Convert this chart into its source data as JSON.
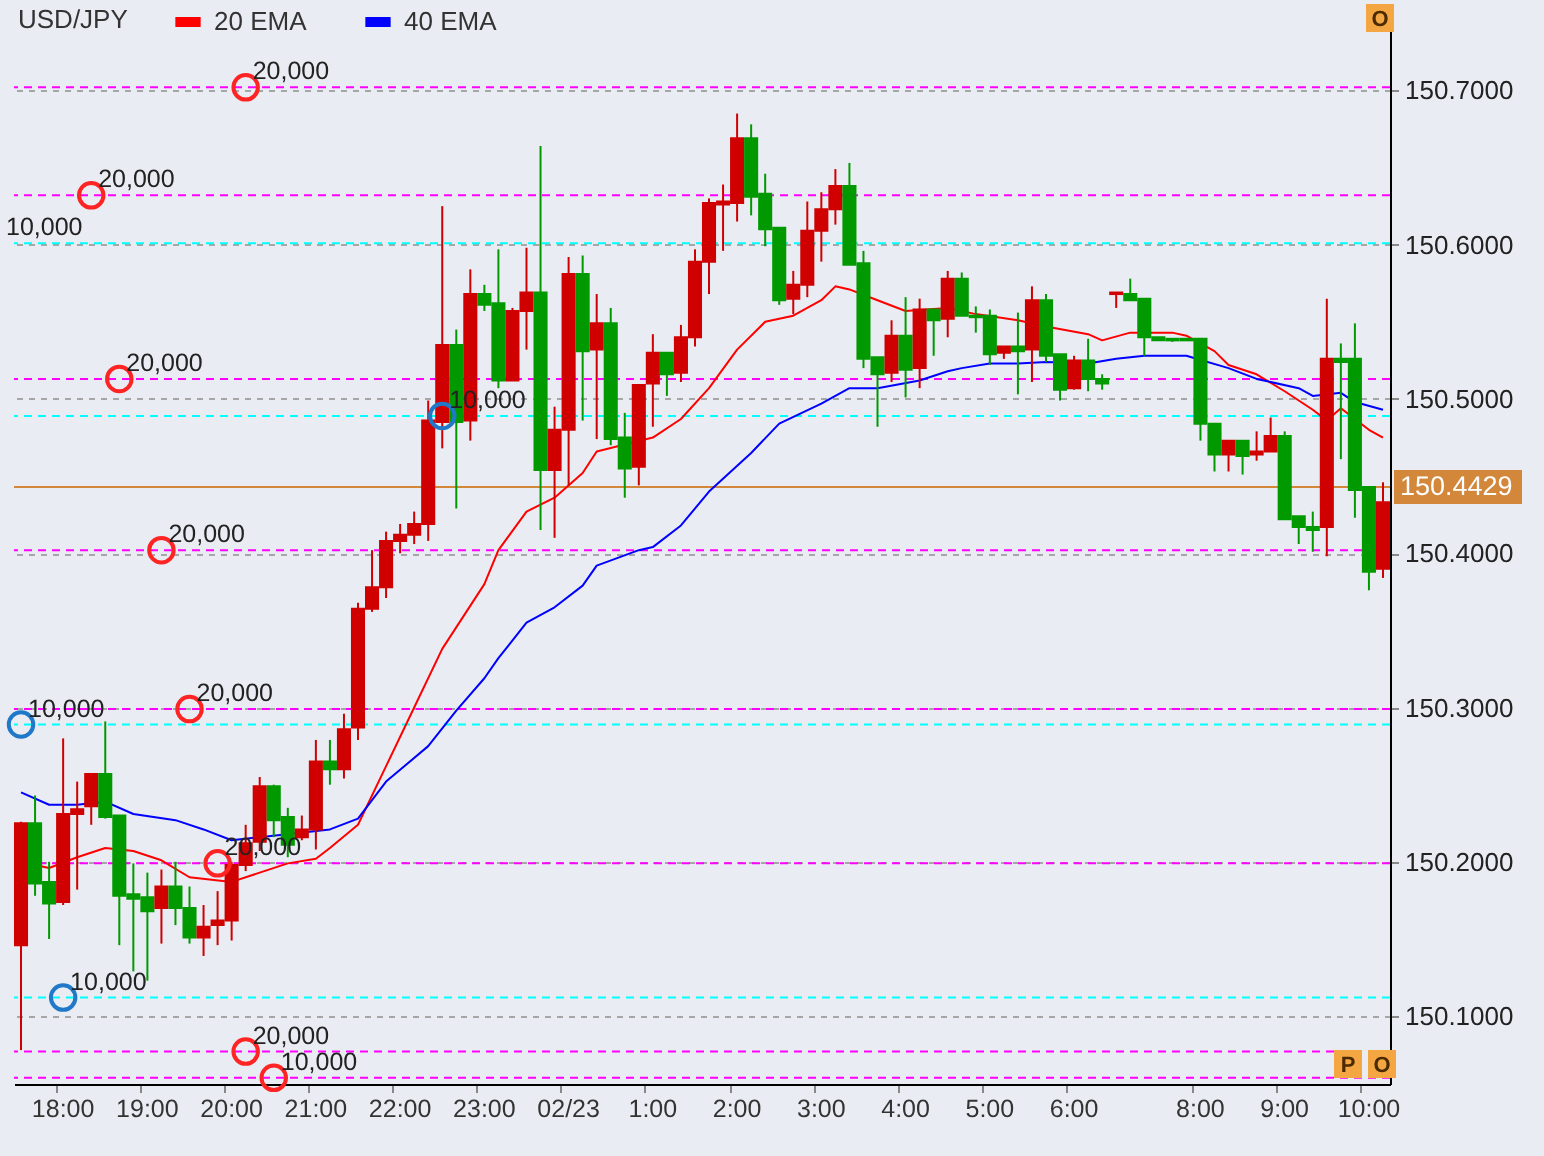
{
  "chart_data": {
    "type": "candlestick",
    "title": "USD/JPY",
    "legend": "top left",
    "grid": "y",
    "categories": [
      null,
      null,
      null,
      "18:00",
      null,
      null,
      null,
      null,
      null,
      "19:00",
      null,
      null,
      null,
      null,
      null,
      "20:00",
      null,
      null,
      null,
      null,
      null,
      "21:00",
      null,
      null,
      null,
      null,
      null,
      "22:00",
      null,
      null,
      null,
      null,
      null,
      "23:00",
      null,
      null,
      null,
      null,
      null,
      "02/23",
      null,
      null,
      null,
      null,
      null,
      "1:00",
      null,
      null,
      null,
      null,
      null,
      "2:00",
      null,
      null,
      null,
      null,
      null,
      "3:00",
      null,
      null,
      null,
      null,
      null,
      "4:00",
      null,
      null,
      null,
      null,
      null,
      "5:00",
      null,
      null,
      null,
      null,
      null,
      "6:00",
      null,
      null,
      null,
      null,
      null,
      null,
      null,
      null,
      "8:00",
      null,
      null,
      null,
      null,
      null,
      "9:00",
      null,
      null,
      null,
      null,
      null,
      "10:00",
      null
    ],
    "ylim": [
      150.056,
      150.756
    ],
    "yticks": [
      {
        "value": 150.1,
        "label": "150.1000"
      },
      {
        "value": 150.2,
        "label": "150.2000"
      },
      {
        "value": 150.3,
        "label": "150.3000"
      },
      {
        "value": 150.4,
        "label": "150.4000"
      },
      {
        "value": 150.5,
        "label": "150.5000"
      },
      {
        "value": 150.6,
        "label": "150.6000"
      },
      {
        "value": 150.7,
        "label": "150.7000"
      }
    ],
    "ohlc": [
      [
        150.146,
        150.226,
        150.078,
        150.225
      ],
      [
        150.225,
        150.243,
        150.178,
        150.186
      ],
      [
        150.187,
        150.2,
        150.15,
        150.173
      ],
      [
        150.174,
        150.28,
        150.172,
        150.231
      ],
      [
        150.231,
        150.252,
        150.182,
        150.234
      ],
      [
        150.236,
        150.257,
        150.224,
        150.257
      ],
      [
        150.257,
        150.291,
        150.228,
        150.229
      ],
      [
        150.23,
        150.23,
        150.146,
        150.178
      ],
      [
        150.179,
        150.199,
        150.129,
        150.176
      ],
      [
        150.177,
        150.193,
        150.123,
        150.168
      ],
      [
        150.17,
        150.195,
        150.147,
        150.184
      ],
      [
        150.184,
        150.2,
        150.159,
        150.17
      ],
      [
        150.17,
        150.184,
        150.147,
        150.151
      ],
      [
        150.151,
        150.172,
        150.139,
        150.158
      ],
      [
        150.159,
        150.181,
        150.146,
        150.162
      ],
      [
        150.162,
        150.2,
        150.149,
        150.198
      ],
      [
        150.198,
        150.224,
        150.194,
        150.212
      ],
      [
        150.213,
        150.255,
        150.207,
        150.249
      ],
      [
        150.249,
        150.25,
        150.216,
        150.227
      ],
      [
        150.229,
        150.235,
        150.203,
        150.211
      ],
      [
        150.216,
        150.23,
        150.214,
        150.221
      ],
      [
        150.221,
        150.279,
        150.208,
        150.265
      ],
      [
        150.265,
        150.279,
        150.25,
        150.26
      ],
      [
        150.26,
        150.296,
        150.254,
        150.286
      ],
      [
        150.287,
        150.368,
        150.279,
        150.364
      ],
      [
        150.364,
        150.402,
        150.362,
        150.378
      ],
      [
        150.378,
        150.414,
        150.371,
        150.408
      ],
      [
        150.408,
        150.419,
        150.4,
        150.412
      ],
      [
        150.412,
        150.427,
        150.406,
        150.419
      ],
      [
        150.419,
        150.499,
        150.408,
        150.486
      ],
      [
        150.485,
        150.625,
        150.468,
        150.535
      ],
      [
        150.535,
        150.545,
        150.429,
        150.485
      ],
      [
        150.486,
        150.584,
        150.473,
        150.568
      ],
      [
        150.568,
        150.574,
        150.557,
        150.561
      ],
      [
        150.562,
        150.597,
        150.507,
        150.512
      ],
      [
        150.512,
        150.559,
        150.512,
        150.557
      ],
      [
        150.557,
        150.598,
        150.532,
        150.569
      ],
      [
        150.569,
        150.664,
        150.415,
        150.454
      ],
      [
        150.454,
        150.495,
        150.41,
        150.48
      ],
      [
        150.48,
        150.592,
        150.444,
        150.581
      ],
      [
        150.581,
        150.593,
        150.486,
        150.531
      ],
      [
        150.532,
        150.568,
        150.474,
        150.549
      ],
      [
        150.549,
        150.559,
        150.47,
        150.474
      ],
      [
        150.475,
        150.491,
        150.436,
        150.455
      ],
      [
        150.456,
        150.509,
        150.444,
        150.509
      ],
      [
        150.51,
        150.542,
        150.482,
        150.53
      ],
      [
        150.53,
        150.53,
        150.502,
        150.516
      ],
      [
        150.517,
        150.548,
        150.511,
        150.54
      ],
      [
        150.54,
        150.597,
        150.534,
        150.589
      ],
      [
        150.589,
        150.63,
        150.568,
        150.627
      ],
      [
        150.626,
        150.639,
        150.596,
        150.628
      ],
      [
        150.627,
        150.685,
        150.615,
        150.669
      ],
      [
        150.669,
        150.678,
        150.619,
        150.631
      ],
      [
        150.633,
        150.646,
        150.599,
        150.61
      ],
      [
        150.611,
        150.611,
        150.561,
        150.564
      ],
      [
        150.565,
        150.583,
        150.555,
        150.574
      ],
      [
        150.574,
        150.628,
        150.566,
        150.609
      ],
      [
        150.609,
        150.634,
        150.589,
        150.623
      ],
      [
        150.623,
        150.649,
        150.613,
        150.638
      ],
      [
        150.638,
        150.653,
        150.587,
        150.587
      ],
      [
        150.588,
        150.596,
        150.52,
        150.526
      ],
      [
        150.527,
        150.527,
        150.482,
        150.516
      ],
      [
        150.517,
        150.551,
        150.511,
        150.541
      ],
      [
        150.541,
        150.566,
        150.501,
        150.519
      ],
      [
        150.52,
        150.565,
        150.507,
        150.558
      ],
      [
        150.558,
        150.558,
        150.528,
        150.551
      ],
      [
        150.552,
        150.583,
        150.54,
        150.578
      ],
      [
        150.578,
        150.582,
        150.554,
        150.554
      ],
      [
        150.554,
        150.56,
        150.543,
        150.553
      ],
      [
        150.554,
        150.558,
        150.522,
        150.529
      ],
      [
        150.53,
        150.534,
        150.526,
        150.534
      ],
      [
        150.534,
        150.556,
        150.503,
        150.531
      ],
      [
        150.532,
        150.573,
        150.511,
        150.564
      ],
      [
        150.564,
        150.568,
        150.524,
        150.528
      ],
      [
        150.529,
        150.529,
        150.499,
        150.506
      ],
      [
        150.507,
        150.528,
        150.506,
        150.525
      ],
      [
        150.525,
        150.539,
        150.505,
        150.513
      ],
      [
        150.513,
        150.516,
        150.506,
        150.51
      ],
      [
        150.568,
        150.569,
        150.559,
        150.569
      ],
      [
        150.568,
        150.578,
        150.564,
        150.564
      ],
      [
        150.565,
        150.565,
        150.528,
        150.54
      ],
      [
        150.54,
        150.54,
        150.538,
        150.538
      ],
      [
        150.539,
        150.539,
        150.537,
        150.538
      ],
      [
        150.539,
        150.539,
        150.538,
        150.538
      ],
      [
        150.539,
        150.539,
        150.473,
        150.484
      ],
      [
        150.484,
        150.484,
        150.453,
        150.464
      ],
      [
        150.464,
        150.473,
        150.453,
        150.473
      ],
      [
        150.473,
        150.473,
        150.451,
        150.463
      ],
      [
        150.464,
        150.479,
        150.46,
        150.466
      ],
      [
        150.466,
        150.488,
        150.466,
        150.476
      ],
      [
        150.476,
        150.479,
        150.422,
        150.422
      ],
      [
        150.424,
        150.424,
        150.406,
        150.417
      ],
      [
        150.417,
        150.427,
        150.401,
        150.415
      ],
      [
        150.417,
        150.565,
        150.398,
        150.526
      ],
      [
        150.526,
        150.536,
        150.461,
        150.524
      ],
      [
        150.526,
        150.549,
        150.423,
        150.441
      ],
      [
        150.443,
        150.443,
        150.376,
        150.388
      ],
      [
        150.39,
        150.446,
        150.384,
        150.433
      ]
    ],
    "colors": [
      "#d00000",
      "#009a00",
      "#009a00",
      "#d00000",
      "#d00000",
      "#d00000",
      "#009a00",
      "#009a00",
      "#009a00",
      "#009a00",
      "#d00000",
      "#009a00",
      "#009a00",
      "#d00000",
      "#d00000",
      "#d00000",
      "#d00000",
      "#d00000",
      "#009a00",
      "#009a00",
      "#d00000",
      "#d00000",
      "#009a00",
      "#d00000",
      "#d00000",
      "#d00000",
      "#d00000",
      "#d00000",
      "#d00000",
      "#d00000",
      "#d00000",
      "#009a00",
      "#d00000",
      "#009a00",
      "#009a00",
      "#d00000",
      "#d00000",
      "#009a00",
      "#d00000",
      "#d00000",
      "#009a00",
      "#d00000",
      "#009a00",
      "#009a00",
      "#d00000",
      "#d00000",
      "#009a00",
      "#d00000",
      "#d00000",
      "#d00000",
      "#d00000",
      "#d00000",
      "#009a00",
      "#009a00",
      "#009a00",
      "#d00000",
      "#d00000",
      "#d00000",
      "#d00000",
      "#009a00",
      "#009a00",
      "#009a00",
      "#d00000",
      "#009a00",
      "#d00000",
      "#009a00",
      "#d00000",
      "#009a00",
      "#009a00",
      "#009a00",
      "#d00000",
      "#009a00",
      "#d00000",
      "#009a00",
      "#009a00",
      "#d00000",
      "#009a00",
      "#009a00",
      "#d00000",
      "#009a00",
      "#009a00",
      "#009a00",
      "#009a00",
      "#009a00",
      "#009a00",
      "#009a00",
      "#d00000",
      "#009a00",
      "#d00000",
      "#d00000",
      "#009a00",
      "#009a00",
      "#009a00",
      "#d00000",
      "#009a00",
      "#009a00",
      "#009a00",
      "#d00000"
    ],
    "series": [
      {
        "name": "20 EMA",
        "type": "line",
        "color": "#ff0000",
        "values": [
          null,
          150.198,
          150.196,
          null,
          150.203,
          null,
          150.209,
          null,
          150.207,
          null,
          150.201,
          null,
          150.19,
          null,
          null,
          150.187,
          null,
          150.193,
          null,
          150.199,
          null,
          150.202,
          150.209,
          null,
          150.224,
          null,
          150.262,
          null,
          150.3,
          null,
          150.338,
          null,
          null,
          150.38,
          150.402,
          null,
          150.427,
          null,
          150.436,
          null,
          150.452,
          150.466,
          null,
          null,
          null,
          150.475,
          null,
          150.487,
          null,
          150.507,
          null,
          150.532,
          null,
          150.55,
          null,
          150.554,
          null,
          150.564,
          150.573,
          150.571,
          null,
          150.564,
          null,
          150.557,
          null,
          null,
          150.559,
          null,
          150.555,
          null,
          null,
          150.551,
          null,
          150.547,
          null,
          null,
          150.542,
          150.538,
          null,
          150.543,
          null,
          null,
          150.543,
          150.541,
          null,
          150.531,
          150.522,
          null,
          150.516,
          null,
          150.505,
          null,
          150.493,
          150.486,
          150.494,
          null,
          150.48,
          150.475
        ]
      },
      {
        "name": "40 EMA",
        "type": "line",
        "color": "#0000ff",
        "values": [
          150.245,
          null,
          150.237,
          null,
          150.237,
          null,
          150.239,
          null,
          150.231,
          null,
          null,
          150.227,
          null,
          150.221,
          null,
          150.214,
          null,
          150.216,
          null,
          null,
          null,
          null,
          150.221,
          null,
          150.228,
          null,
          150.252,
          null,
          null,
          150.275,
          null,
          150.298,
          null,
          150.319,
          150.332,
          null,
          150.355,
          null,
          150.365,
          null,
          150.379,
          150.392,
          null,
          null,
          150.402,
          150.404,
          null,
          150.418,
          null,
          150.44,
          null,
          null,
          150.465,
          null,
          150.484,
          null,
          null,
          150.497,
          null,
          150.507,
          null,
          150.507,
          null,
          null,
          150.512,
          null,
          150.518,
          150.52,
          null,
          150.523,
          null,
          150.523,
          null,
          150.524,
          null,
          null,
          150.523,
          null,
          150.526,
          null,
          150.528,
          null,
          null,
          150.528,
          null,
          null,
          150.52,
          null,
          150.513,
          null,
          null,
          150.507,
          150.502,
          null,
          150.504,
          150.498,
          null,
          150.493
        ]
      }
    ],
    "ref_lines": [
      {
        "axis": "y",
        "value": 150.702,
        "color": "#ff00ff",
        "line_style": "dashed"
      },
      {
        "axis": "y",
        "value": 150.632,
        "color": "#ff00ff",
        "line_style": "dashed"
      },
      {
        "axis": "y",
        "value": 150.601,
        "color": "#00ffff",
        "line_style": "dashed"
      },
      {
        "axis": "y",
        "value": 150.513,
        "color": "#ff00ff",
        "line_style": "dashed"
      },
      {
        "axis": "y",
        "value": 150.489,
        "color": "#00ffff",
        "line_style": "dashed"
      },
      {
        "axis": "y",
        "value": 150.402,
        "color": "#ff00ff",
        "line_style": "dashed"
      },
      {
        "axis": "y",
        "value": 150.299,
        "color": "#ff00ff",
        "line_style": "dashed"
      },
      {
        "axis": "y",
        "value": 150.289,
        "color": "#00ffff",
        "line_style": "dashed"
      },
      {
        "axis": "y",
        "value": 150.199,
        "color": "#ff00ff",
        "line_style": "dashed"
      },
      {
        "axis": "y",
        "value": 150.112,
        "color": "#00ffff",
        "line_style": "dashed"
      },
      {
        "axis": "y",
        "value": 150.077,
        "color": "#ff00ff",
        "line_style": "dashed"
      },
      {
        "axis": "y",
        "value": 150.06,
        "color": "#ff00ff",
        "line_style": "dashed"
      },
      {
        "axis": "y",
        "value": 150.4429,
        "label": "150.4429",
        "color": "#d2873a"
      }
    ],
    "annotations": [
      {
        "text": "20,000",
        "y": 150.702
      },
      {
        "text": "20,000",
        "y": 150.632
      },
      {
        "text": "10,000",
        "y": 150.601
      },
      {
        "text": "20,000",
        "y": 150.513
      },
      {
        "text": "10,000",
        "y": 150.489
      },
      {
        "text": "20,000",
        "y": 150.402
      },
      {
        "text": "20,000",
        "y": 150.299
      },
      {
        "text": "10,000",
        "y": 150.289
      },
      {
        "text": "20,000",
        "y": 150.199
      },
      {
        "text": "10,000",
        "y": 150.112
      },
      {
        "text": "20,000",
        "y": 150.077
      },
      {
        "text": "10,000",
        "y": 150.06
      },
      "O",
      "P",
      "O"
    ]
  }
}
